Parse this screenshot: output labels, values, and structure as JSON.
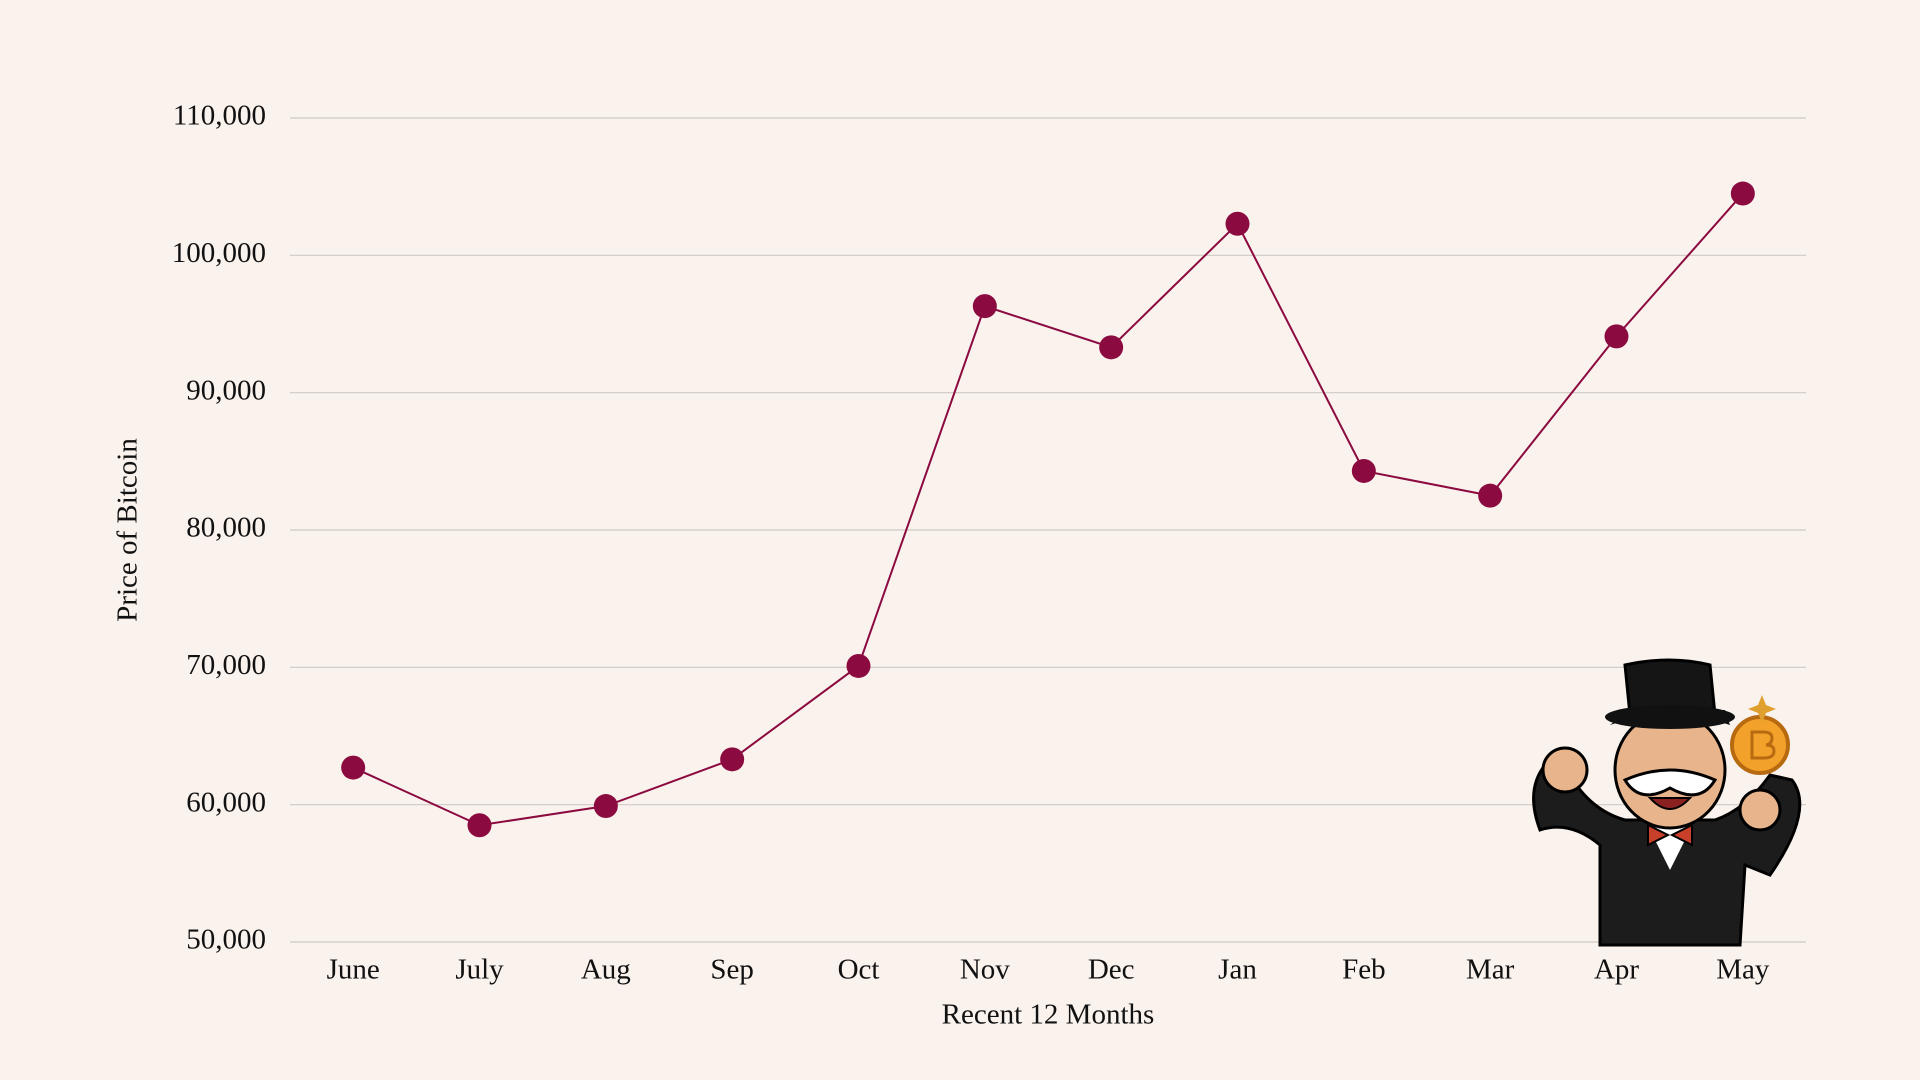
{
  "chart_data": {
    "type": "line",
    "x_label": "Recent 12 Months",
    "y_label": "Price of Bitcoin",
    "categories": [
      "June",
      "July",
      "Aug",
      "Sep",
      "Oct",
      "Nov",
      "Dec",
      "Jan",
      "Feb",
      "Mar",
      "Apr",
      "May"
    ],
    "values": [
      62700,
      58500,
      59900,
      63300,
      70100,
      96300,
      93300,
      102300,
      84300,
      82500,
      94100,
      104500
    ],
    "color": "#8b0a3f",
    "ylim": [
      50000,
      110000
    ],
    "yticks": [
      {
        "value": 50000,
        "label": "50,000"
      },
      {
        "value": 60000,
        "label": "60,000"
      },
      {
        "value": 70000,
        "label": "70,000"
      },
      {
        "value": 80000,
        "label": "80,000"
      },
      {
        "value": 90000,
        "label": "90,000"
      },
      {
        "value": 100000,
        "label": "100,000"
      },
      {
        "value": 110000,
        "label": "110,000"
      }
    ],
    "grid": true
  }
}
